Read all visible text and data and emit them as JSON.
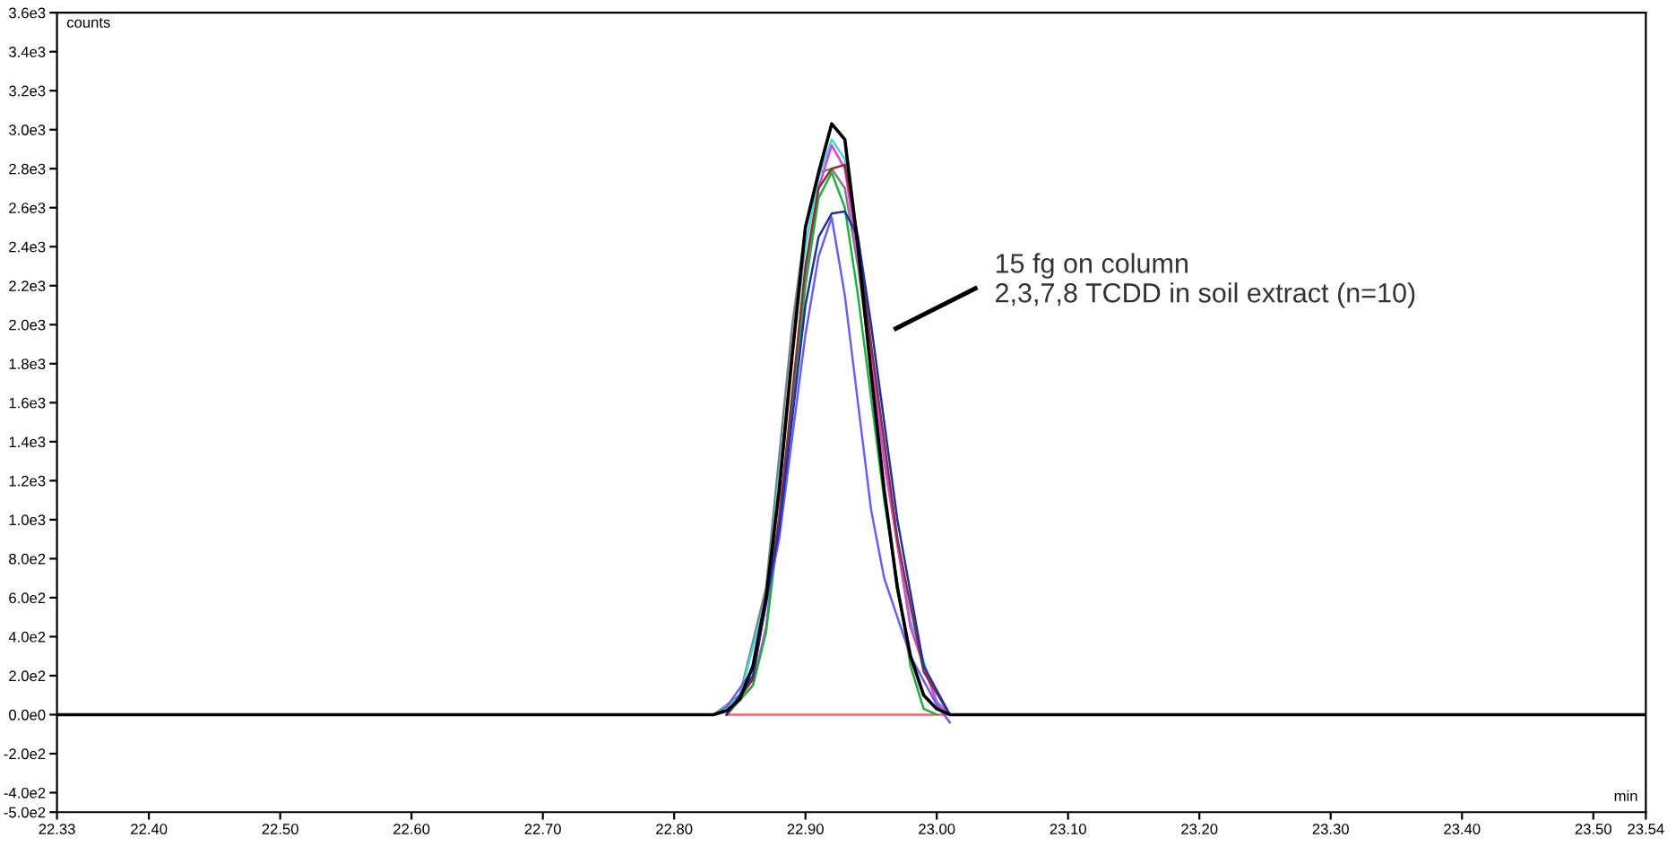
{
  "chart_data": {
    "type": "line",
    "xlabel": "min",
    "ylabel": "counts",
    "xlim": [
      22.33,
      23.54
    ],
    "xticks": [
      {
        "value": 22.33,
        "label": "22.33"
      },
      {
        "value": 22.4,
        "label": "22.40"
      },
      {
        "value": 22.5,
        "label": "22.50"
      },
      {
        "value": 22.6,
        "label": "22.60"
      },
      {
        "value": 22.7,
        "label": "22.70"
      },
      {
        "value": 22.8,
        "label": "22.80"
      },
      {
        "value": 22.9,
        "label": "22.90"
      },
      {
        "value": 23.0,
        "label": "23.00"
      },
      {
        "value": 23.1,
        "label": "23.10"
      },
      {
        "value": 23.2,
        "label": "23.20"
      },
      {
        "value": 23.3,
        "label": "23.30"
      },
      {
        "value": 23.4,
        "label": "23.40"
      },
      {
        "value": 23.5,
        "label": "23.50"
      },
      {
        "value": 23.54,
        "label": "23.54"
      }
    ],
    "ylim": [
      -500,
      3600
    ],
    "yticks": [
      {
        "value": -500,
        "label": "-5.0e2"
      },
      {
        "value": -400,
        "label": "-4.0e2"
      },
      {
        "value": -200,
        "label": "-2.0e2"
      },
      {
        "value": 0,
        "label": "0.0e0"
      },
      {
        "value": 200,
        "label": "2.0e2"
      },
      {
        "value": 400,
        "label": "4.0e2"
      },
      {
        "value": 600,
        "label": "6.0e2"
      },
      {
        "value": 800,
        "label": "8.0e2"
      },
      {
        "value": 1000,
        "label": "1.0e3"
      },
      {
        "value": 1200,
        "label": "1.2e3"
      },
      {
        "value": 1400,
        "label": "1.4e3"
      },
      {
        "value": 1600,
        "label": "1.6e3"
      },
      {
        "value": 1800,
        "label": "1.8e3"
      },
      {
        "value": 2000,
        "label": "2.0e3"
      },
      {
        "value": 2200,
        "label": "2.2e3"
      },
      {
        "value": 2400,
        "label": "2.4e3"
      },
      {
        "value": 2600,
        "label": "2.6e3"
      },
      {
        "value": 2800,
        "label": "2.8e3"
      },
      {
        "value": 3000,
        "label": "3.0e3"
      },
      {
        "value": 3200,
        "label": "3.2e3"
      },
      {
        "value": 3400,
        "label": "3.4e3"
      },
      {
        "value": 3600,
        "label": "3.6e3"
      }
    ],
    "grid": false,
    "legend": false,
    "marker": "none",
    "line_style": "solid",
    "series": [
      {
        "color": "#ff6060",
        "x": [
          22.84,
          23.01
        ],
        "values": [
          0,
          0
        ]
      },
      {
        "color": "#808080",
        "x": [
          22.83,
          22.85,
          22.87,
          22.89,
          22.9,
          22.91,
          22.92,
          22.93,
          22.94,
          22.96,
          22.98,
          23.0,
          23.01
        ],
        "values": [
          0,
          100,
          650,
          2000,
          2500,
          2780,
          2800,
          2700,
          2300,
          1300,
          450,
          60,
          0
        ]
      },
      {
        "color": "#40d8e0",
        "x": [
          22.83,
          22.85,
          22.87,
          22.89,
          22.9,
          22.91,
          22.92,
          22.93,
          22.94,
          22.96,
          22.98,
          23.0,
          23.01
        ],
        "values": [
          0,
          90,
          600,
          1850,
          2400,
          2750,
          2950,
          2850,
          2350,
          1350,
          480,
          70,
          0
        ]
      },
      {
        "color": "#e040e0",
        "x": [
          22.84,
          22.86,
          22.87,
          22.89,
          22.9,
          22.91,
          22.92,
          22.93,
          22.94,
          22.96,
          22.98,
          23.0,
          23.01
        ],
        "values": [
          0,
          150,
          450,
          1600,
          2250,
          2700,
          2920,
          2800,
          2350,
          1300,
          450,
          60,
          0
        ]
      },
      {
        "color": "#20b040",
        "x": [
          22.84,
          22.86,
          22.87,
          22.89,
          22.9,
          22.91,
          22.92,
          22.93,
          22.94,
          22.96,
          22.98,
          22.99,
          23.0
        ],
        "values": [
          0,
          150,
          420,
          1550,
          2200,
          2650,
          2780,
          2600,
          2150,
          1100,
          250,
          30,
          0
        ]
      },
      {
        "color": "#8a3030",
        "x": [
          22.84,
          22.86,
          22.88,
          22.9,
          22.91,
          22.92,
          22.93,
          22.94,
          22.95,
          22.97,
          22.99,
          23.01
        ],
        "values": [
          0,
          180,
          1000,
          2300,
          2700,
          2800,
          2820,
          2450,
          1900,
          900,
          220,
          0
        ]
      },
      {
        "color": "#6a60f0",
        "x": [
          22.83,
          22.84,
          22.86,
          22.88,
          22.9,
          22.91,
          22.92,
          22.93,
          22.94,
          22.95,
          22.96,
          22.98,
          23.0,
          23.01
        ],
        "values": [
          0,
          40,
          230,
          900,
          1950,
          2350,
          2550,
          2150,
          1600,
          1050,
          700,
          300,
          50,
          -40
        ]
      },
      {
        "color": "#2030a0",
        "x": [
          22.84,
          22.86,
          22.88,
          22.9,
          22.91,
          22.92,
          22.93,
          22.94,
          22.95,
          22.97,
          22.99,
          23.01
        ],
        "values": [
          0,
          200,
          950,
          2100,
          2450,
          2570,
          2580,
          2450,
          2000,
          1000,
          250,
          0
        ]
      },
      {
        "color": "#000000",
        "x": [
          22.33,
          22.83,
          22.84,
          22.85,
          22.86,
          22.87,
          22.88,
          22.89,
          22.9,
          22.91,
          22.92,
          22.93,
          22.94,
          22.95,
          22.96,
          22.97,
          22.98,
          22.99,
          23.0,
          23.01,
          23.54
        ],
        "values": [
          0,
          0,
          20,
          80,
          250,
          600,
          1150,
          1850,
          2500,
          2780,
          3030,
          2950,
          2400,
          1750,
          1150,
          650,
          300,
          100,
          30,
          0,
          0
        ]
      }
    ],
    "annotations": [
      "15 fg on column\n2,3,7,8 TCDD in soil extract (n=10)"
    ]
  }
}
